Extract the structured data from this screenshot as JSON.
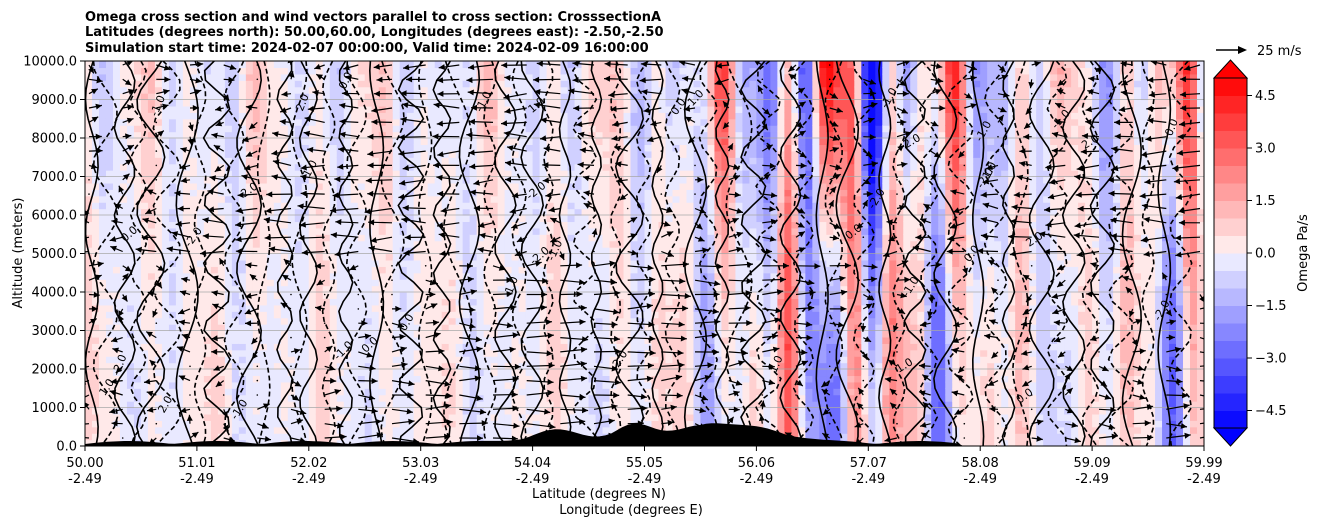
{
  "chart_data": {
    "type": "heatmap",
    "title_lines": [
      "Omega cross section and wind vectors parallel to cross section: CrosssectionA",
      "Latitudes (degrees north): 50.00,60.00, Longitudes (degrees east): -2.50,-2.50",
      "Simulation start time: 2024-02-07 00:00:00, Valid time: 2024-02-09 16:00:00"
    ],
    "ylabel": "Altitude (meters)",
    "xlabel_line1": "Latitude (degrees N)",
    "xlabel_line2": "Longitude (degrees E)",
    "ylim": [
      0,
      10000
    ],
    "y_ticks": [
      "0.0",
      "1000.0",
      "2000.0",
      "3000.0",
      "4000.0",
      "5000.0",
      "6000.0",
      "7000.0",
      "8000.0",
      "9000.0",
      "10000.0"
    ],
    "x_ticks": [
      {
        "lat": "50.00",
        "lon": "-2.49"
      },
      {
        "lat": "51.01",
        "lon": "-2.49"
      },
      {
        "lat": "52.02",
        "lon": "-2.49"
      },
      {
        "lat": "53.03",
        "lon": "-2.49"
      },
      {
        "lat": "54.04",
        "lon": "-2.49"
      },
      {
        "lat": "55.05",
        "lon": "-2.49"
      },
      {
        "lat": "56.06",
        "lon": "-2.49"
      },
      {
        "lat": "57.07",
        "lon": "-2.49"
      },
      {
        "lat": "58.08",
        "lon": "-2.49"
      },
      {
        "lat": "59.09",
        "lon": "-2.49"
      },
      {
        "lat": "59.99",
        "lon": "-2.49"
      }
    ],
    "colorbar": {
      "label": "Omega Pa/s",
      "range": [
        -5,
        5
      ],
      "step": 0.5,
      "ticks": [
        "-4.5",
        "-3.0",
        "-1.5",
        "0.0",
        "1.5",
        "3.0",
        "4.5"
      ]
    },
    "quiver_key": {
      "label": "25 m/s"
    },
    "contour_labels": [
      "0.0",
      "-1.0",
      "1.0",
      "-2.0",
      "2.0"
    ],
    "colors": {
      "negative": "#0000ff",
      "positive": "#ff0000",
      "neutral": "#ffffff",
      "terrain": "#000000"
    }
  }
}
